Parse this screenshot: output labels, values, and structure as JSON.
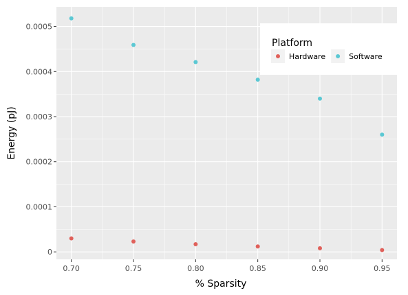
{
  "chart_data": {
    "type": "scatter",
    "xlabel": "% Sparsity",
    "ylabel": "Energy (pJ)",
    "xlim": [
      0.688,
      0.962
    ],
    "ylim": [
      -1.65e-05,
      0.0005435
    ],
    "x_ticks": [
      0.7,
      0.75,
      0.8,
      0.85,
      0.9,
      0.95
    ],
    "x_tick_labels": [
      "0.70",
      "0.75",
      "0.80",
      "0.85",
      "0.90",
      "0.95"
    ],
    "y_ticks": [
      0,
      0.0001,
      0.0002,
      0.0003,
      0.0004,
      0.0005
    ],
    "y_tick_labels": [
      "0",
      "0.0001",
      "0.0002",
      "0.0003",
      "0.0004",
      "0.0005"
    ],
    "grid": true,
    "legend": {
      "title": "Platform",
      "placement": "top-right",
      "orientation": "horizontal"
    },
    "series": [
      {
        "name": "Hardware",
        "color": "#e0605a",
        "x": [
          0.7,
          0.75,
          0.8,
          0.85,
          0.9,
          0.95
        ],
        "y": [
          3e-05,
          2.3e-05,
          1.7e-05,
          1.2e-05,
          8e-06,
          4e-06
        ]
      },
      {
        "name": "Software",
        "color": "#5bc8d3",
        "x": [
          0.7,
          0.75,
          0.8,
          0.85,
          0.9,
          0.95
        ],
        "y": [
          0.000518,
          0.000459,
          0.000421,
          0.000382,
          0.00034,
          0.00026
        ]
      }
    ]
  }
}
